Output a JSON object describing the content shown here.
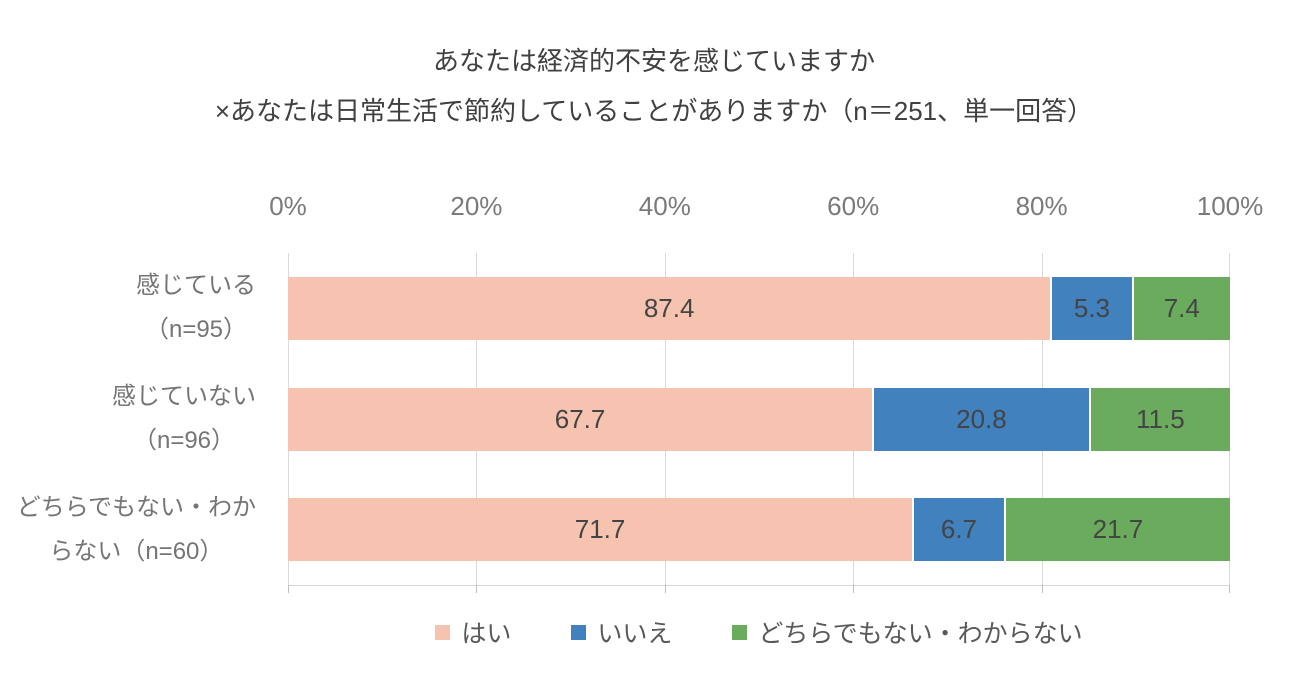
{
  "title": {
    "line1": "あなたは経済的不安を感じていますか",
    "line2": "×あなたは日常生活で節約していることがありますか（n＝251、単一回答）"
  },
  "chart_data": {
    "type": "bar",
    "orientation": "horizontal",
    "stacked": true,
    "title": "あなたは経済的不安を感じていますか ×あなたは日常生活で節約していることがありますか（n＝251、単一回答）",
    "x_axis": {
      "ticks": [
        "0%",
        "20%",
        "40%",
        "60%",
        "80%",
        "100%"
      ],
      "range": [
        0,
        100
      ],
      "grid": true
    },
    "categories": [
      "感じている（n=95）",
      "感じていない（n=96）",
      "どちらでもない・わからない（n=60）"
    ],
    "category_label_lines": [
      [
        "感じている",
        "（n=95）"
      ],
      [
        "感じていない",
        "（n=96）"
      ],
      [
        "どちらでもない・わか",
        "らない（n=60）"
      ]
    ],
    "series": [
      {
        "name": "はい",
        "color": "#F5C3AF",
        "values": [
          87.4,
          67.7,
          71.7
        ]
      },
      {
        "name": "いいえ",
        "color": "#4081BE",
        "values": [
          5.3,
          20.8,
          6.7
        ]
      },
      {
        "name": "どちらでもない・わからない",
        "color": "#6BAB5E",
        "values": [
          7.4,
          11.5,
          21.7
        ]
      }
    ],
    "value_label_decimals": 1,
    "legend_position": "bottom",
    "colors": {
      "grid": "#D9D9D9",
      "axis_text": "#7A7A7A",
      "category_text": "#757575",
      "value_label_text": "#444444",
      "legend_text": "#595959",
      "title_text": "#404040"
    }
  }
}
